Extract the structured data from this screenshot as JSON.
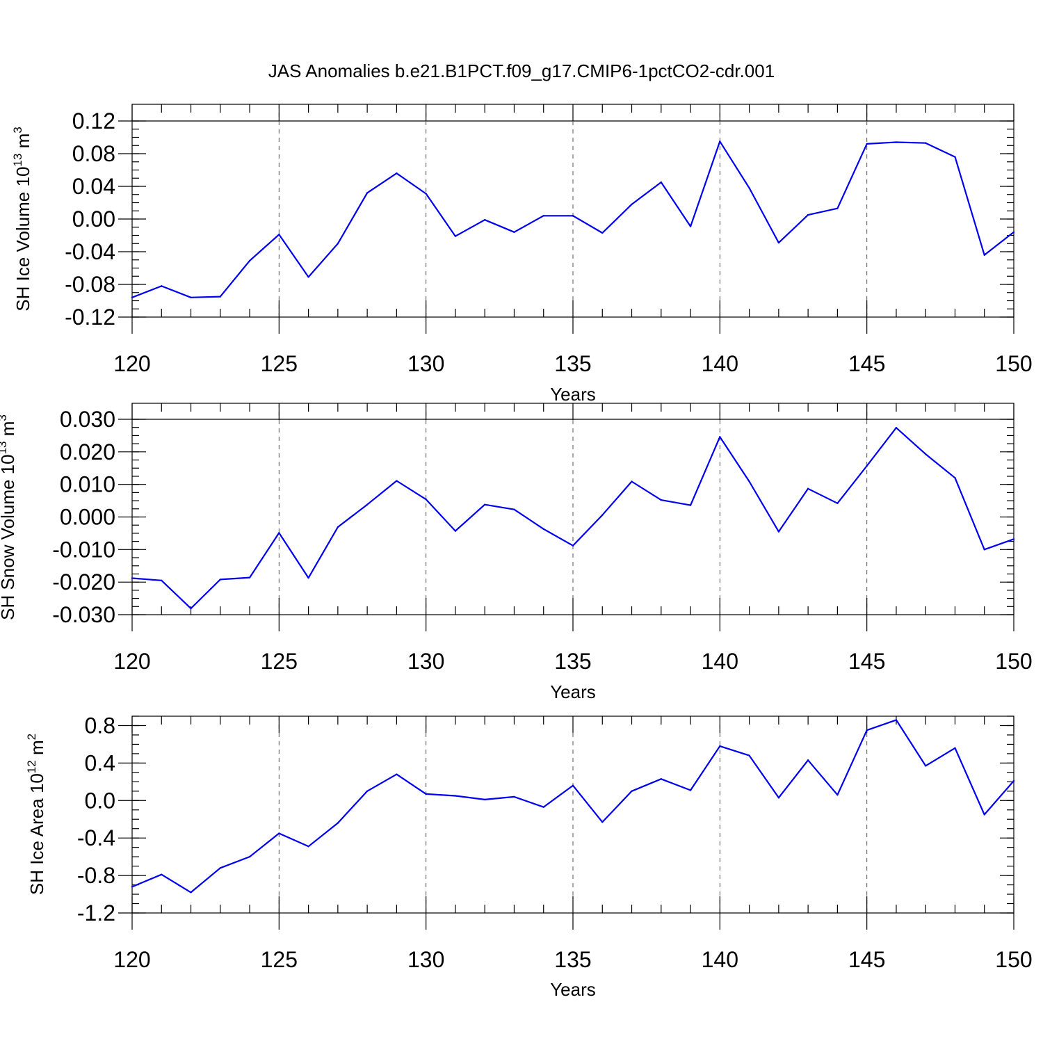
{
  "figure": {
    "title": "JAS Anomalies b.e21.B1PCT.f09_g17.CMIP6-1pctCO2-cdr.001"
  },
  "colors": {
    "series": "#0000ee",
    "axis": "#000000",
    "grid": "#555555"
  },
  "chart_data": [
    {
      "type": "line",
      "ylabel": {
        "main": "SH Ice Volume 10",
        "sup": "13",
        "unit": " m",
        "unit_sup": "3"
      },
      "xlabel": "Years",
      "xlim": [
        120,
        150
      ],
      "ylim": [
        -0.12,
        0.12
      ],
      "xticks": [
        120,
        125,
        130,
        135,
        140,
        145,
        150
      ],
      "xtick_labels": [
        "120",
        "125",
        "130",
        "135",
        "140",
        "145",
        "150"
      ],
      "yticks": [
        -0.12,
        -0.08,
        -0.04,
        0.0,
        0.04,
        0.08,
        0.12
      ],
      "ytick_labels": [
        "-0.12",
        "-0.08",
        "-0.04",
        "0.00",
        "0.04",
        "0.08",
        "0.12"
      ],
      "ytick_minor_step": 0.01,
      "grid": "x dashed",
      "x": [
        120,
        121,
        122,
        123,
        124,
        125,
        126,
        127,
        128,
        129,
        130,
        131,
        132,
        133,
        134,
        135,
        136,
        137,
        138,
        139,
        140,
        141,
        142,
        143,
        144,
        145,
        146,
        147,
        148,
        149,
        150
      ],
      "y": [
        -0.096,
        -0.082,
        -0.096,
        -0.095,
        -0.051,
        -0.019,
        -0.071,
        -0.03,
        0.032,
        0.056,
        0.031,
        -0.021,
        -0.001,
        -0.016,
        0.004,
        0.004,
        -0.017,
        0.018,
        0.045,
        -0.009,
        0.095,
        0.038,
        -0.029,
        0.005,
        0.013,
        0.092,
        0.094,
        0.093,
        0.076,
        -0.044,
        -0.016
      ]
    },
    {
      "type": "line",
      "ylabel": {
        "main": "SH Snow Volume 10",
        "sup": "13",
        "unit": " m",
        "unit_sup": "3"
      },
      "xlabel": "Years",
      "xlim": [
        120,
        150
      ],
      "ylim": [
        -0.03,
        0.03
      ],
      "xticks": [
        120,
        125,
        130,
        135,
        140,
        145,
        150
      ],
      "xtick_labels": [
        "120",
        "125",
        "130",
        "135",
        "140",
        "145",
        "150"
      ],
      "yticks": [
        -0.03,
        -0.02,
        -0.01,
        0.0,
        0.01,
        0.02,
        0.03
      ],
      "ytick_labels": [
        "-0.030",
        "-0.020",
        "-0.010",
        "0.000",
        "0.010",
        "0.020",
        "0.030"
      ],
      "ytick_minor_step": 0.0025,
      "grid": "x dashed",
      "x": [
        120,
        121,
        122,
        123,
        124,
        125,
        126,
        127,
        128,
        129,
        130,
        131,
        132,
        133,
        134,
        135,
        136,
        137,
        138,
        139,
        140,
        141,
        142,
        143,
        144,
        145,
        146,
        147,
        148,
        149,
        150
      ],
      "y": [
        -0.0188,
        -0.0195,
        -0.0281,
        -0.0192,
        -0.0186,
        -0.0049,
        -0.0187,
        -0.0031,
        0.0038,
        0.0111,
        0.0054,
        -0.0043,
        0.0038,
        0.0023,
        -0.0037,
        -0.0088,
        0.0006,
        0.0109,
        0.0052,
        0.0036,
        0.0246,
        0.0109,
        -0.0045,
        0.0087,
        0.0042,
        0.0157,
        0.0274,
        0.0193,
        0.012,
        -0.01,
        -0.0068
      ]
    },
    {
      "type": "line",
      "ylabel": {
        "main": "SH Ice Area 10",
        "sup": "12",
        "unit": " m",
        "unit_sup": "2"
      },
      "xlabel": "Years",
      "xlim": [
        120,
        150
      ],
      "ylim": [
        -1.2,
        0.9
      ],
      "xticks": [
        120,
        125,
        130,
        135,
        140,
        145,
        150
      ],
      "xtick_labels": [
        "120",
        "125",
        "130",
        "135",
        "140",
        "145",
        "150"
      ],
      "yticks": [
        -1.2,
        -0.8,
        -0.4,
        0.0,
        0.4,
        0.8
      ],
      "ytick_labels": [
        "-1.2",
        "-0.8",
        "-0.4",
        "0.0",
        "0.4",
        "0.8"
      ],
      "ytick_minor_step": 0.1,
      "grid": "x dashed",
      "x": [
        120,
        121,
        122,
        123,
        124,
        125,
        126,
        127,
        128,
        129,
        130,
        131,
        132,
        133,
        134,
        135,
        136,
        137,
        138,
        139,
        140,
        141,
        142,
        143,
        144,
        145,
        146,
        147,
        148,
        149,
        150
      ],
      "y": [
        -0.92,
        -0.79,
        -0.98,
        -0.72,
        -0.6,
        -0.35,
        -0.49,
        -0.24,
        0.1,
        0.28,
        0.07,
        0.05,
        0.01,
        0.04,
        -0.07,
        0.16,
        -0.23,
        0.1,
        0.23,
        0.11,
        0.58,
        0.48,
        0.03,
        0.43,
        0.06,
        0.75,
        0.86,
        0.37,
        0.56,
        -0.15,
        0.21
      ]
    }
  ]
}
